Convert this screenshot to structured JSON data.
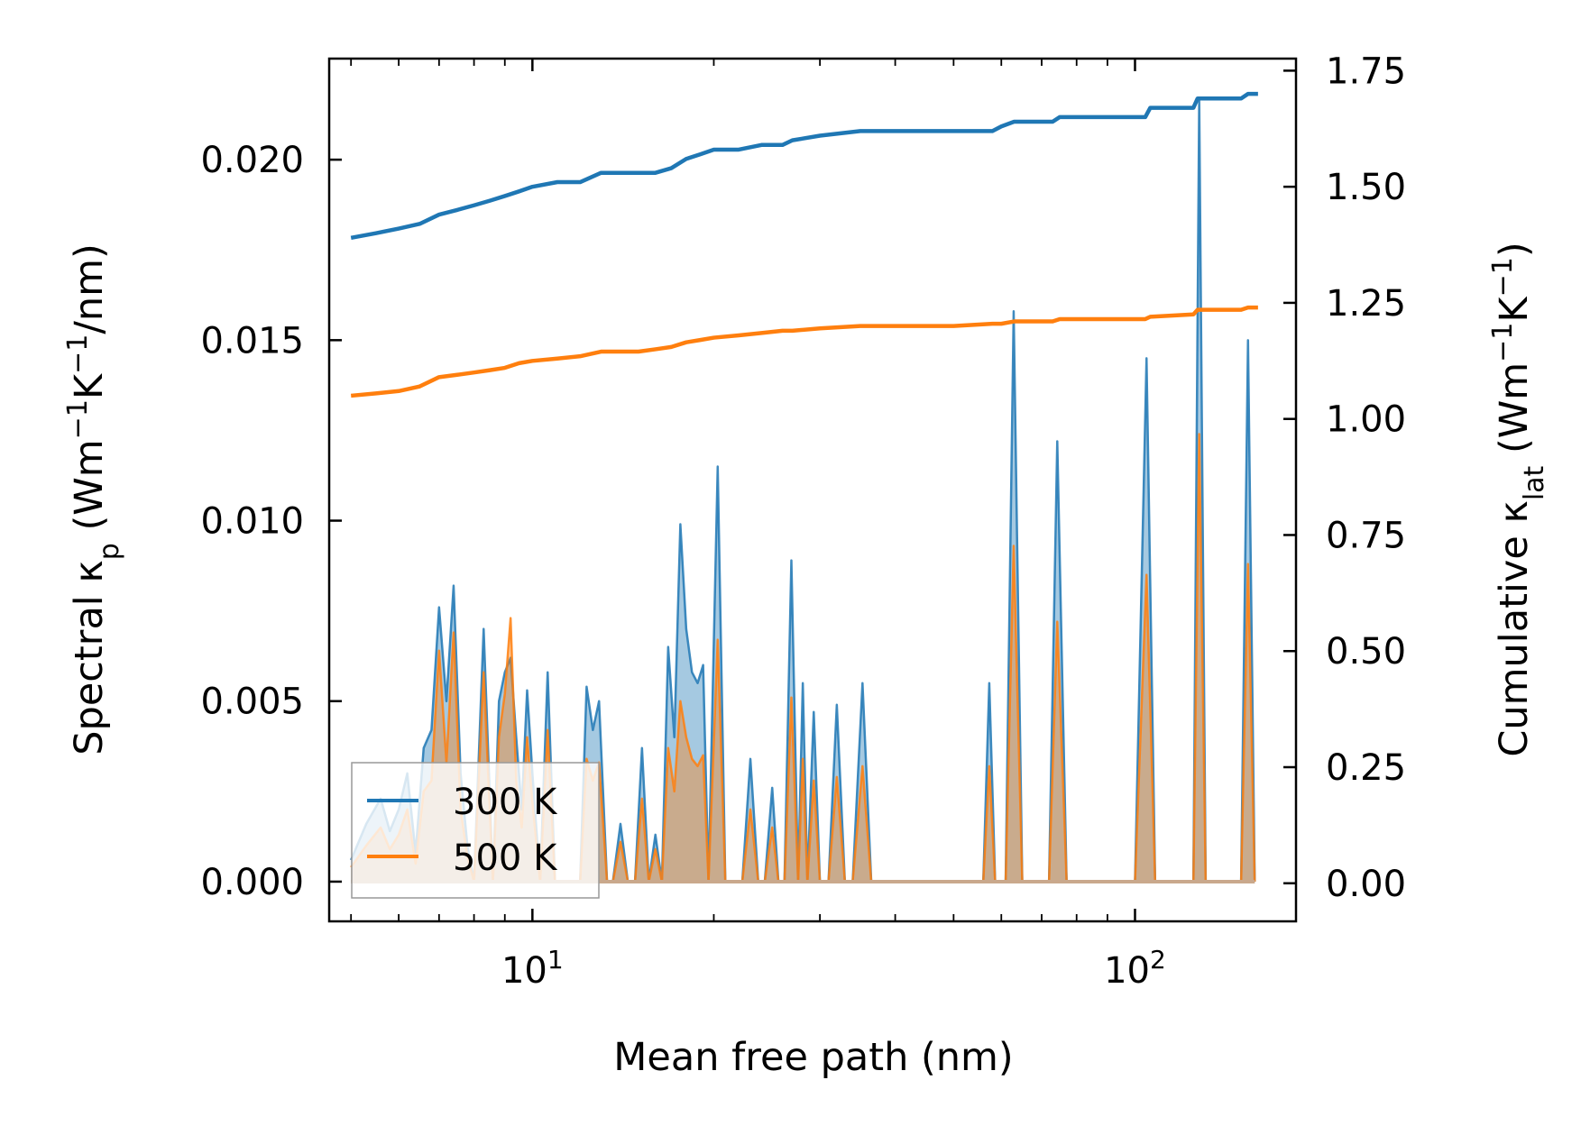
{
  "chart_data": {
    "type": "line",
    "xscale": "log",
    "xlabel": "Mean free path (nm)",
    "ylabel_left": {
      "prefix": "Spectral κ",
      "sub": "p",
      "suffix": " (Wm",
      "sup1": "−1",
      "mid": "K",
      "sup2": "−1",
      "end": "/nm)"
    },
    "ylabel_right": {
      "prefix": "Cumulative κ",
      "sub": "lat",
      "suffix": " (Wm",
      "sup1": "−1",
      "mid": "K",
      "sup2": "−1",
      "end": ")"
    },
    "xlim": [
      4.6,
      185
    ],
    "ylim_left": [
      -0.0011,
      0.0228
    ],
    "ylim_right": [
      -0.082,
      1.776
    ],
    "x_ticks": [
      {
        "value": 10,
        "base": "10",
        "exp": "1"
      },
      {
        "value": 100,
        "base": "10",
        "exp": "2"
      }
    ],
    "y_ticks_left": [
      {
        "value": 0.0,
        "label": "0.000"
      },
      {
        "value": 0.005,
        "label": "0.005"
      },
      {
        "value": 0.01,
        "label": "0.010"
      },
      {
        "value": 0.015,
        "label": "0.015"
      },
      {
        "value": 0.02,
        "label": "0.020"
      }
    ],
    "y_ticks_right": [
      {
        "value": 0.0,
        "label": "0.00"
      },
      {
        "value": 0.25,
        "label": "0.25"
      },
      {
        "value": 0.5,
        "label": "0.50"
      },
      {
        "value": 0.75,
        "label": "0.75"
      },
      {
        "value": 1.0,
        "label": "1.00"
      },
      {
        "value": 1.25,
        "label": "1.25"
      },
      {
        "value": 1.5,
        "label": "1.50"
      },
      {
        "value": 1.75,
        "label": "1.75"
      }
    ],
    "legend": {
      "position": "lower-left"
    },
    "series": [
      {
        "name": "300 K",
        "color": "#1f77b4",
        "spectral": [
          [
            5,
            0.0006
          ],
          [
            5.3,
            0.0016
          ],
          [
            5.6,
            0.0023
          ],
          [
            5.8,
            0.0014
          ],
          [
            6.0,
            0.002
          ],
          [
            6.2,
            0.003
          ],
          [
            6.4,
            0.0008
          ],
          [
            6.6,
            0.0037
          ],
          [
            6.8,
            0.0042
          ],
          [
            7.0,
            0.0076
          ],
          [
            7.2,
            0.005
          ],
          [
            7.4,
            0.0082
          ],
          [
            7.6,
            0.003
          ],
          [
            7.8,
            0.001
          ],
          [
            8.0,
            0.0,
            "z"
          ],
          [
            8.3,
            0.007
          ],
          [
            8.6,
            0.0,
            "z"
          ],
          [
            8.8,
            0.005
          ],
          [
            9.0,
            0.0058
          ],
          [
            9.2,
            0.0062
          ],
          [
            9.4,
            0.004
          ],
          [
            9.6,
            0.002
          ],
          [
            9.8,
            0.0053
          ],
          [
            10.0,
            0.003
          ],
          [
            10.3,
            0.0,
            "z"
          ],
          [
            10.6,
            0.0058
          ],
          [
            10.9,
            0.0,
            "z"
          ],
          [
            11.2,
            0.0,
            "z"
          ],
          [
            11.6,
            0.0,
            "z"
          ],
          [
            12.0,
            0.0,
            "z"
          ],
          [
            12.3,
            0.0054
          ],
          [
            12.6,
            0.0042
          ],
          [
            12.9,
            0.005
          ],
          [
            13.3,
            0.0,
            "z"
          ],
          [
            13.6,
            0.0,
            "z"
          ],
          [
            14.0,
            0.0016
          ],
          [
            14.4,
            0.0,
            "z"
          ],
          [
            14.8,
            0.0,
            "z"
          ],
          [
            15.2,
            0.0037
          ],
          [
            15.6,
            0.0,
            "z"
          ],
          [
            16.0,
            0.0013
          ],
          [
            16.4,
            0.0,
            "z"
          ],
          [
            16.8,
            0.0065
          ],
          [
            17.2,
            0.004
          ],
          [
            17.6,
            0.0099
          ],
          [
            18.0,
            0.007
          ],
          [
            18.4,
            0.0058
          ],
          [
            18.8,
            0.0055
          ],
          [
            19.2,
            0.006
          ],
          [
            19.6,
            0.0,
            "z"
          ],
          [
            20.3,
            0.0115
          ],
          [
            20.9,
            0.0,
            "z"
          ],
          [
            21.5,
            0.0,
            "z"
          ],
          [
            22.3,
            0.0,
            "z"
          ],
          [
            23.0,
            0.0034
          ],
          [
            23.7,
            0.0,
            "z"
          ],
          [
            24.3,
            0.0,
            "z"
          ],
          [
            25.0,
            0.0026
          ],
          [
            25.6,
            0.0,
            "z"
          ],
          [
            26.2,
            0.0,
            "z"
          ],
          [
            26.9,
            0.0089
          ],
          [
            27.6,
            0.0,
            "z"
          ],
          [
            28.1,
            0.0055
          ],
          [
            28.6,
            0.0,
            "z"
          ],
          [
            29.3,
            0.0047
          ],
          [
            30.0,
            0.0,
            "z"
          ],
          [
            31.0,
            0.0,
            "z"
          ],
          [
            32.0,
            0.0049
          ],
          [
            33.0,
            0.0,
            "z"
          ],
          [
            34.0,
            0.0,
            "z"
          ],
          [
            35.3,
            0.0055
          ],
          [
            36.5,
            0.0,
            "z"
          ],
          [
            40,
            0.0,
            "z"
          ],
          [
            50,
            0.0,
            "z"
          ],
          [
            56,
            0.0,
            "z"
          ],
          [
            57.3,
            0.0055
          ],
          [
            58.6,
            0.0,
            "z"
          ],
          [
            61,
            0.0,
            "z"
          ],
          [
            62.9,
            0.0158
          ],
          [
            65,
            0.0,
            "z"
          ],
          [
            72,
            0.0,
            "z"
          ],
          [
            74.3,
            0.0122
          ],
          [
            77,
            0.0,
            "z"
          ],
          [
            100,
            0.0,
            "z"
          ],
          [
            104.5,
            0.0145
          ],
          [
            108,
            0.0,
            "z"
          ],
          [
            125,
            0.0,
            "z"
          ],
          [
            127.8,
            0.0217
          ],
          [
            131,
            0.0,
            "z"
          ],
          [
            150,
            0.0,
            "z"
          ],
          [
            154,
            0.015
          ],
          [
            158,
            0.0,
            "z"
          ]
        ],
        "cumulative": [
          [
            5,
            1.39
          ],
          [
            5.5,
            1.4
          ],
          [
            6.0,
            1.41
          ],
          [
            6.5,
            1.42
          ],
          [
            7.0,
            1.44
          ],
          [
            7.5,
            1.45
          ],
          [
            8.0,
            1.46
          ],
          [
            8.5,
            1.47
          ],
          [
            9.0,
            1.48
          ],
          [
            9.5,
            1.49
          ],
          [
            10,
            1.5
          ],
          [
            11,
            1.51
          ],
          [
            12,
            1.51
          ],
          [
            13,
            1.53
          ],
          [
            14,
            1.53
          ],
          [
            15,
            1.53
          ],
          [
            16,
            1.53
          ],
          [
            17,
            1.54
          ],
          [
            18,
            1.56
          ],
          [
            19,
            1.57
          ],
          [
            20,
            1.58
          ],
          [
            22,
            1.58
          ],
          [
            24,
            1.59
          ],
          [
            26,
            1.59
          ],
          [
            27,
            1.6
          ],
          [
            30,
            1.61
          ],
          [
            35,
            1.62
          ],
          [
            40,
            1.62
          ],
          [
            50,
            1.62
          ],
          [
            58,
            1.62
          ],
          [
            60,
            1.63
          ],
          [
            63,
            1.64
          ],
          [
            73,
            1.64
          ],
          [
            75,
            1.65
          ],
          [
            100,
            1.65
          ],
          [
            104,
            1.65
          ],
          [
            106,
            1.67
          ],
          [
            125,
            1.67
          ],
          [
            127,
            1.69
          ],
          [
            150,
            1.69
          ],
          [
            154,
            1.7
          ],
          [
            160,
            1.7
          ]
        ]
      },
      {
        "name": "500 K",
        "color": "#ff7f0e",
        "spectral": [
          [
            5,
            0.0004
          ],
          [
            5.3,
            0.001
          ],
          [
            5.6,
            0.0015
          ],
          [
            5.8,
            0.0009
          ],
          [
            6.0,
            0.0013
          ],
          [
            6.2,
            0.002
          ],
          [
            6.4,
            0.0005
          ],
          [
            6.6,
            0.0025
          ],
          [
            6.8,
            0.0028
          ],
          [
            7.0,
            0.0064
          ],
          [
            7.2,
            0.0033
          ],
          [
            7.4,
            0.0069
          ],
          [
            7.6,
            0.002
          ],
          [
            7.8,
            0.0007
          ],
          [
            8.0,
            0.0,
            "z"
          ],
          [
            8.3,
            0.0058
          ],
          [
            8.6,
            0.0,
            "z"
          ],
          [
            8.8,
            0.004
          ],
          [
            9.0,
            0.0052
          ],
          [
            9.2,
            0.0073
          ],
          [
            9.4,
            0.0028
          ],
          [
            9.6,
            0.0015
          ],
          [
            9.8,
            0.004
          ],
          [
            10.0,
            0.0022
          ],
          [
            10.3,
            0.0,
            "z"
          ],
          [
            10.6,
            0.0042
          ],
          [
            10.9,
            0.0,
            "z"
          ],
          [
            11.2,
            0.0,
            "z"
          ],
          [
            11.6,
            0.0,
            "z"
          ],
          [
            12.0,
            0.0,
            "z"
          ],
          [
            12.3,
            0.0034
          ],
          [
            12.6,
            0.0028
          ],
          [
            12.9,
            0.0033
          ],
          [
            13.3,
            0.0,
            "z"
          ],
          [
            13.6,
            0.0,
            "z"
          ],
          [
            14.0,
            0.0011
          ],
          [
            14.4,
            0.0,
            "z"
          ],
          [
            14.8,
            0.0,
            "z"
          ],
          [
            15.2,
            0.0023
          ],
          [
            15.6,
            0.0,
            "z"
          ],
          [
            16.0,
            0.0009
          ],
          [
            16.4,
            0.0,
            "z"
          ],
          [
            16.8,
            0.0037
          ],
          [
            17.2,
            0.0025
          ],
          [
            17.6,
            0.005
          ],
          [
            18.0,
            0.004
          ],
          [
            18.4,
            0.0034
          ],
          [
            18.8,
            0.0032
          ],
          [
            19.2,
            0.0035
          ],
          [
            19.6,
            0.0,
            "z"
          ],
          [
            20.3,
            0.0067
          ],
          [
            20.9,
            0.0,
            "z"
          ],
          [
            21.5,
            0.0,
            "z"
          ],
          [
            22.3,
            0.0,
            "z"
          ],
          [
            23.0,
            0.002
          ],
          [
            23.7,
            0.0,
            "z"
          ],
          [
            24.3,
            0.0,
            "z"
          ],
          [
            25.0,
            0.0015
          ],
          [
            25.6,
            0.0,
            "z"
          ],
          [
            26.2,
            0.0,
            "z"
          ],
          [
            26.9,
            0.0051
          ],
          [
            27.6,
            0.0,
            "z"
          ],
          [
            28.1,
            0.0034
          ],
          [
            28.6,
            0.0,
            "z"
          ],
          [
            29.3,
            0.0028
          ],
          [
            30.0,
            0.0,
            "z"
          ],
          [
            31.0,
            0.0,
            "z"
          ],
          [
            32.0,
            0.0029
          ],
          [
            33.0,
            0.0,
            "z"
          ],
          [
            34.0,
            0.0,
            "z"
          ],
          [
            35.3,
            0.0032
          ],
          [
            36.5,
            0.0,
            "z"
          ],
          [
            40,
            0.0,
            "z"
          ],
          [
            50,
            0.0,
            "z"
          ],
          [
            56,
            0.0,
            "z"
          ],
          [
            57.3,
            0.0032
          ],
          [
            58.6,
            0.0,
            "z"
          ],
          [
            61,
            0.0,
            "z"
          ],
          [
            62.9,
            0.0093
          ],
          [
            65,
            0.0,
            "z"
          ],
          [
            72,
            0.0,
            "z"
          ],
          [
            74.3,
            0.0072
          ],
          [
            77,
            0.0,
            "z"
          ],
          [
            100,
            0.0,
            "z"
          ],
          [
            104.5,
            0.0085
          ],
          [
            108,
            0.0,
            "z"
          ],
          [
            125,
            0.0,
            "z"
          ],
          [
            127.8,
            0.0124
          ],
          [
            131,
            0.0,
            "z"
          ],
          [
            150,
            0.0,
            "z"
          ],
          [
            154,
            0.0088
          ],
          [
            158,
            0.0,
            "z"
          ]
        ],
        "cumulative": [
          [
            5,
            1.05
          ],
          [
            5.5,
            1.055
          ],
          [
            6.0,
            1.06
          ],
          [
            6.5,
            1.07
          ],
          [
            7.0,
            1.09
          ],
          [
            7.5,
            1.095
          ],
          [
            8.0,
            1.1
          ],
          [
            8.5,
            1.105
          ],
          [
            9.0,
            1.11
          ],
          [
            9.5,
            1.12
          ],
          [
            10,
            1.125
          ],
          [
            11,
            1.13
          ],
          [
            12,
            1.135
          ],
          [
            13,
            1.145
          ],
          [
            14,
            1.145
          ],
          [
            15,
            1.145
          ],
          [
            16,
            1.15
          ],
          [
            17,
            1.155
          ],
          [
            18,
            1.165
          ],
          [
            19,
            1.17
          ],
          [
            20,
            1.175
          ],
          [
            22,
            1.18
          ],
          [
            24,
            1.185
          ],
          [
            26,
            1.19
          ],
          [
            27,
            1.19
          ],
          [
            30,
            1.195
          ],
          [
            35,
            1.2
          ],
          [
            40,
            1.2
          ],
          [
            50,
            1.2
          ],
          [
            58,
            1.205
          ],
          [
            60,
            1.205
          ],
          [
            63,
            1.21
          ],
          [
            73,
            1.21
          ],
          [
            75,
            1.215
          ],
          [
            100,
            1.215
          ],
          [
            104,
            1.215
          ],
          [
            106,
            1.22
          ],
          [
            125,
            1.225
          ],
          [
            127,
            1.235
          ],
          [
            150,
            1.235
          ],
          [
            154,
            1.24
          ],
          [
            160,
            1.24
          ]
        ]
      }
    ]
  }
}
